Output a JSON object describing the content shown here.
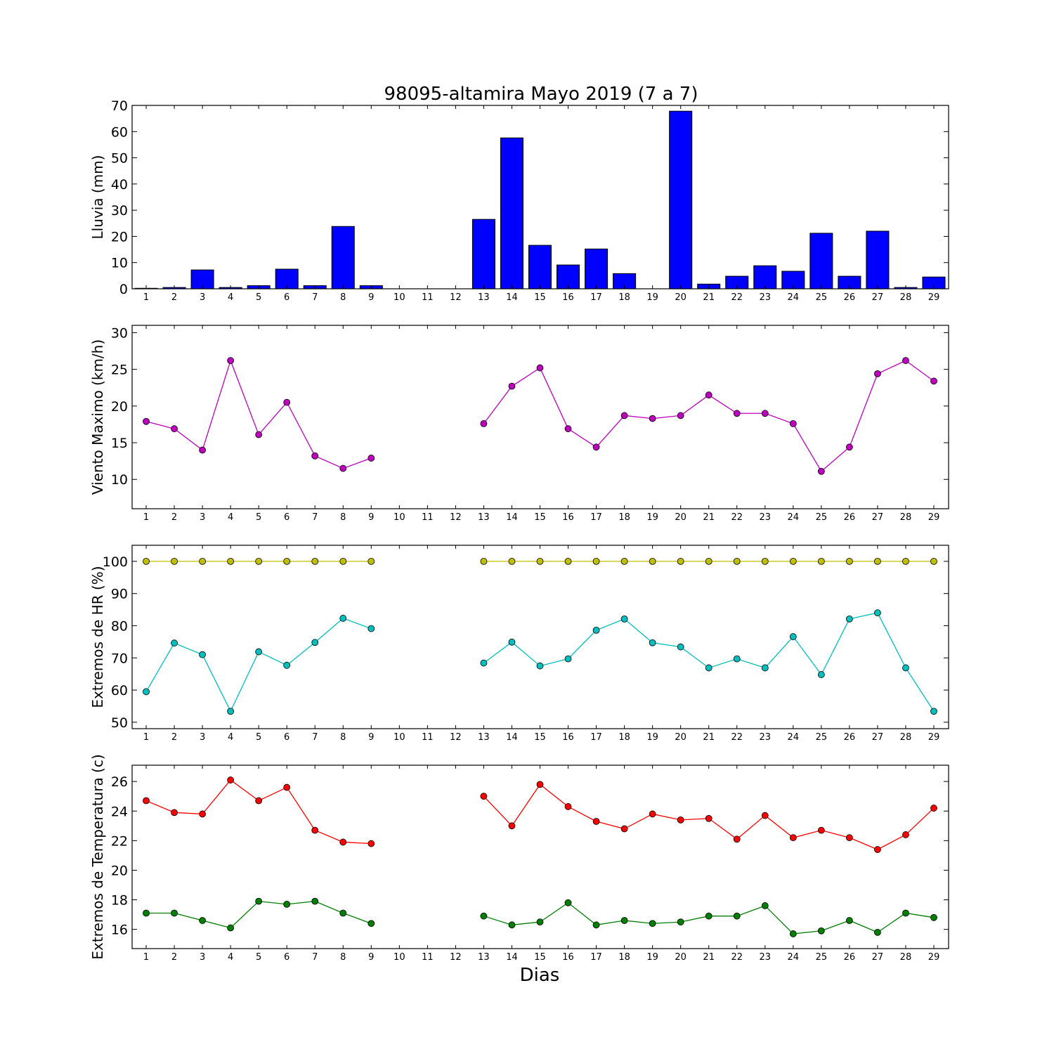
{
  "title": "98095-altamira Mayo 2019  (7 a 7)",
  "xlabel": "Dias",
  "days": [
    1,
    2,
    3,
    4,
    5,
    6,
    7,
    8,
    9,
    10,
    11,
    12,
    13,
    14,
    15,
    16,
    17,
    18,
    19,
    20,
    21,
    22,
    23,
    24,
    25,
    26,
    27,
    28,
    29
  ],
  "chart_data": [
    {
      "type": "bar",
      "ylabel": "Lluvia (mm)",
      "ylim": [
        0,
        70
      ],
      "yticks": [
        0,
        10,
        20,
        30,
        40,
        50,
        60,
        70
      ],
      "grid": false,
      "series": [
        {
          "color": "#0000ff",
          "values": [
            0.2,
            0.5,
            7.2,
            0.5,
            1.2,
            7.5,
            1.2,
            23.8,
            1.2,
            null,
            null,
            null,
            26.5,
            57.6,
            16.6,
            9.1,
            15.2,
            5.8,
            0,
            67.8,
            1.8,
            4.8,
            8.8,
            6.7,
            21.2,
            4.8,
            22.0,
            0.5,
            4.5
          ]
        }
      ]
    },
    {
      "type": "line",
      "ylabel": "Viento Maximo (km/h)",
      "ylim": [
        6,
        31
      ],
      "yticks": [
        10,
        15,
        20,
        25,
        30
      ],
      "grid": false,
      "series": [
        {
          "color": "#bf00bf",
          "values": [
            17.9,
            16.9,
            14.0,
            26.2,
            16.1,
            20.5,
            13.2,
            11.5,
            12.9,
            null,
            null,
            null,
            17.6,
            22.7,
            25.2,
            16.9,
            14.4,
            18.7,
            18.3,
            18.7,
            21.5,
            19.0,
            19.0,
            17.6,
            11.1,
            14.4,
            24.4,
            26.2,
            23.4
          ]
        }
      ]
    },
    {
      "type": "line",
      "ylabel": "Extremos de HR (%)",
      "ylim": [
        48,
        105
      ],
      "yticks": [
        50,
        60,
        70,
        80,
        90,
        100
      ],
      "grid": false,
      "series": [
        {
          "color": "#bfbf00",
          "values": [
            100,
            100,
            100,
            100,
            100,
            100,
            100,
            100,
            100,
            null,
            null,
            null,
            100,
            100,
            100,
            100,
            100,
            100,
            100,
            100,
            100,
            100,
            100,
            100,
            100,
            100,
            100,
            100,
            100
          ]
        },
        {
          "color": "#00bfbf",
          "values": [
            59.5,
            74.6,
            71.0,
            53.4,
            71.9,
            67.7,
            74.8,
            82.3,
            79.1,
            null,
            null,
            null,
            68.4,
            74.9,
            67.5,
            69.7,
            78.6,
            82.1,
            74.7,
            73.4,
            66.9,
            69.7,
            66.9,
            76.6,
            64.8,
            82.1,
            84.0,
            66.9,
            53.4
          ]
        }
      ]
    },
    {
      "type": "line",
      "ylabel": "Extremos de Temperatura (c)",
      "ylim": [
        14.7,
        27.1
      ],
      "yticks": [
        16,
        18,
        20,
        22,
        24,
        26
      ],
      "grid": false,
      "series": [
        {
          "color": "#ff0000",
          "values": [
            24.7,
            23.9,
            23.8,
            26.1,
            24.7,
            25.6,
            22.7,
            21.9,
            21.8,
            null,
            null,
            null,
            25.0,
            23.0,
            25.8,
            24.3,
            23.3,
            22.8,
            23.8,
            23.4,
            23.5,
            22.1,
            23.7,
            22.2,
            22.7,
            22.2,
            21.4,
            22.4,
            24.2
          ]
        },
        {
          "color": "#007f00",
          "values": [
            17.1,
            17.1,
            16.6,
            16.1,
            17.9,
            17.7,
            17.9,
            17.1,
            16.4,
            null,
            null,
            null,
            16.9,
            16.3,
            16.5,
            17.8,
            16.3,
            16.6,
            16.4,
            16.5,
            16.9,
            16.9,
            17.6,
            15.7,
            15.9,
            16.6,
            15.8,
            17.1,
            16.8
          ]
        }
      ]
    }
  ]
}
